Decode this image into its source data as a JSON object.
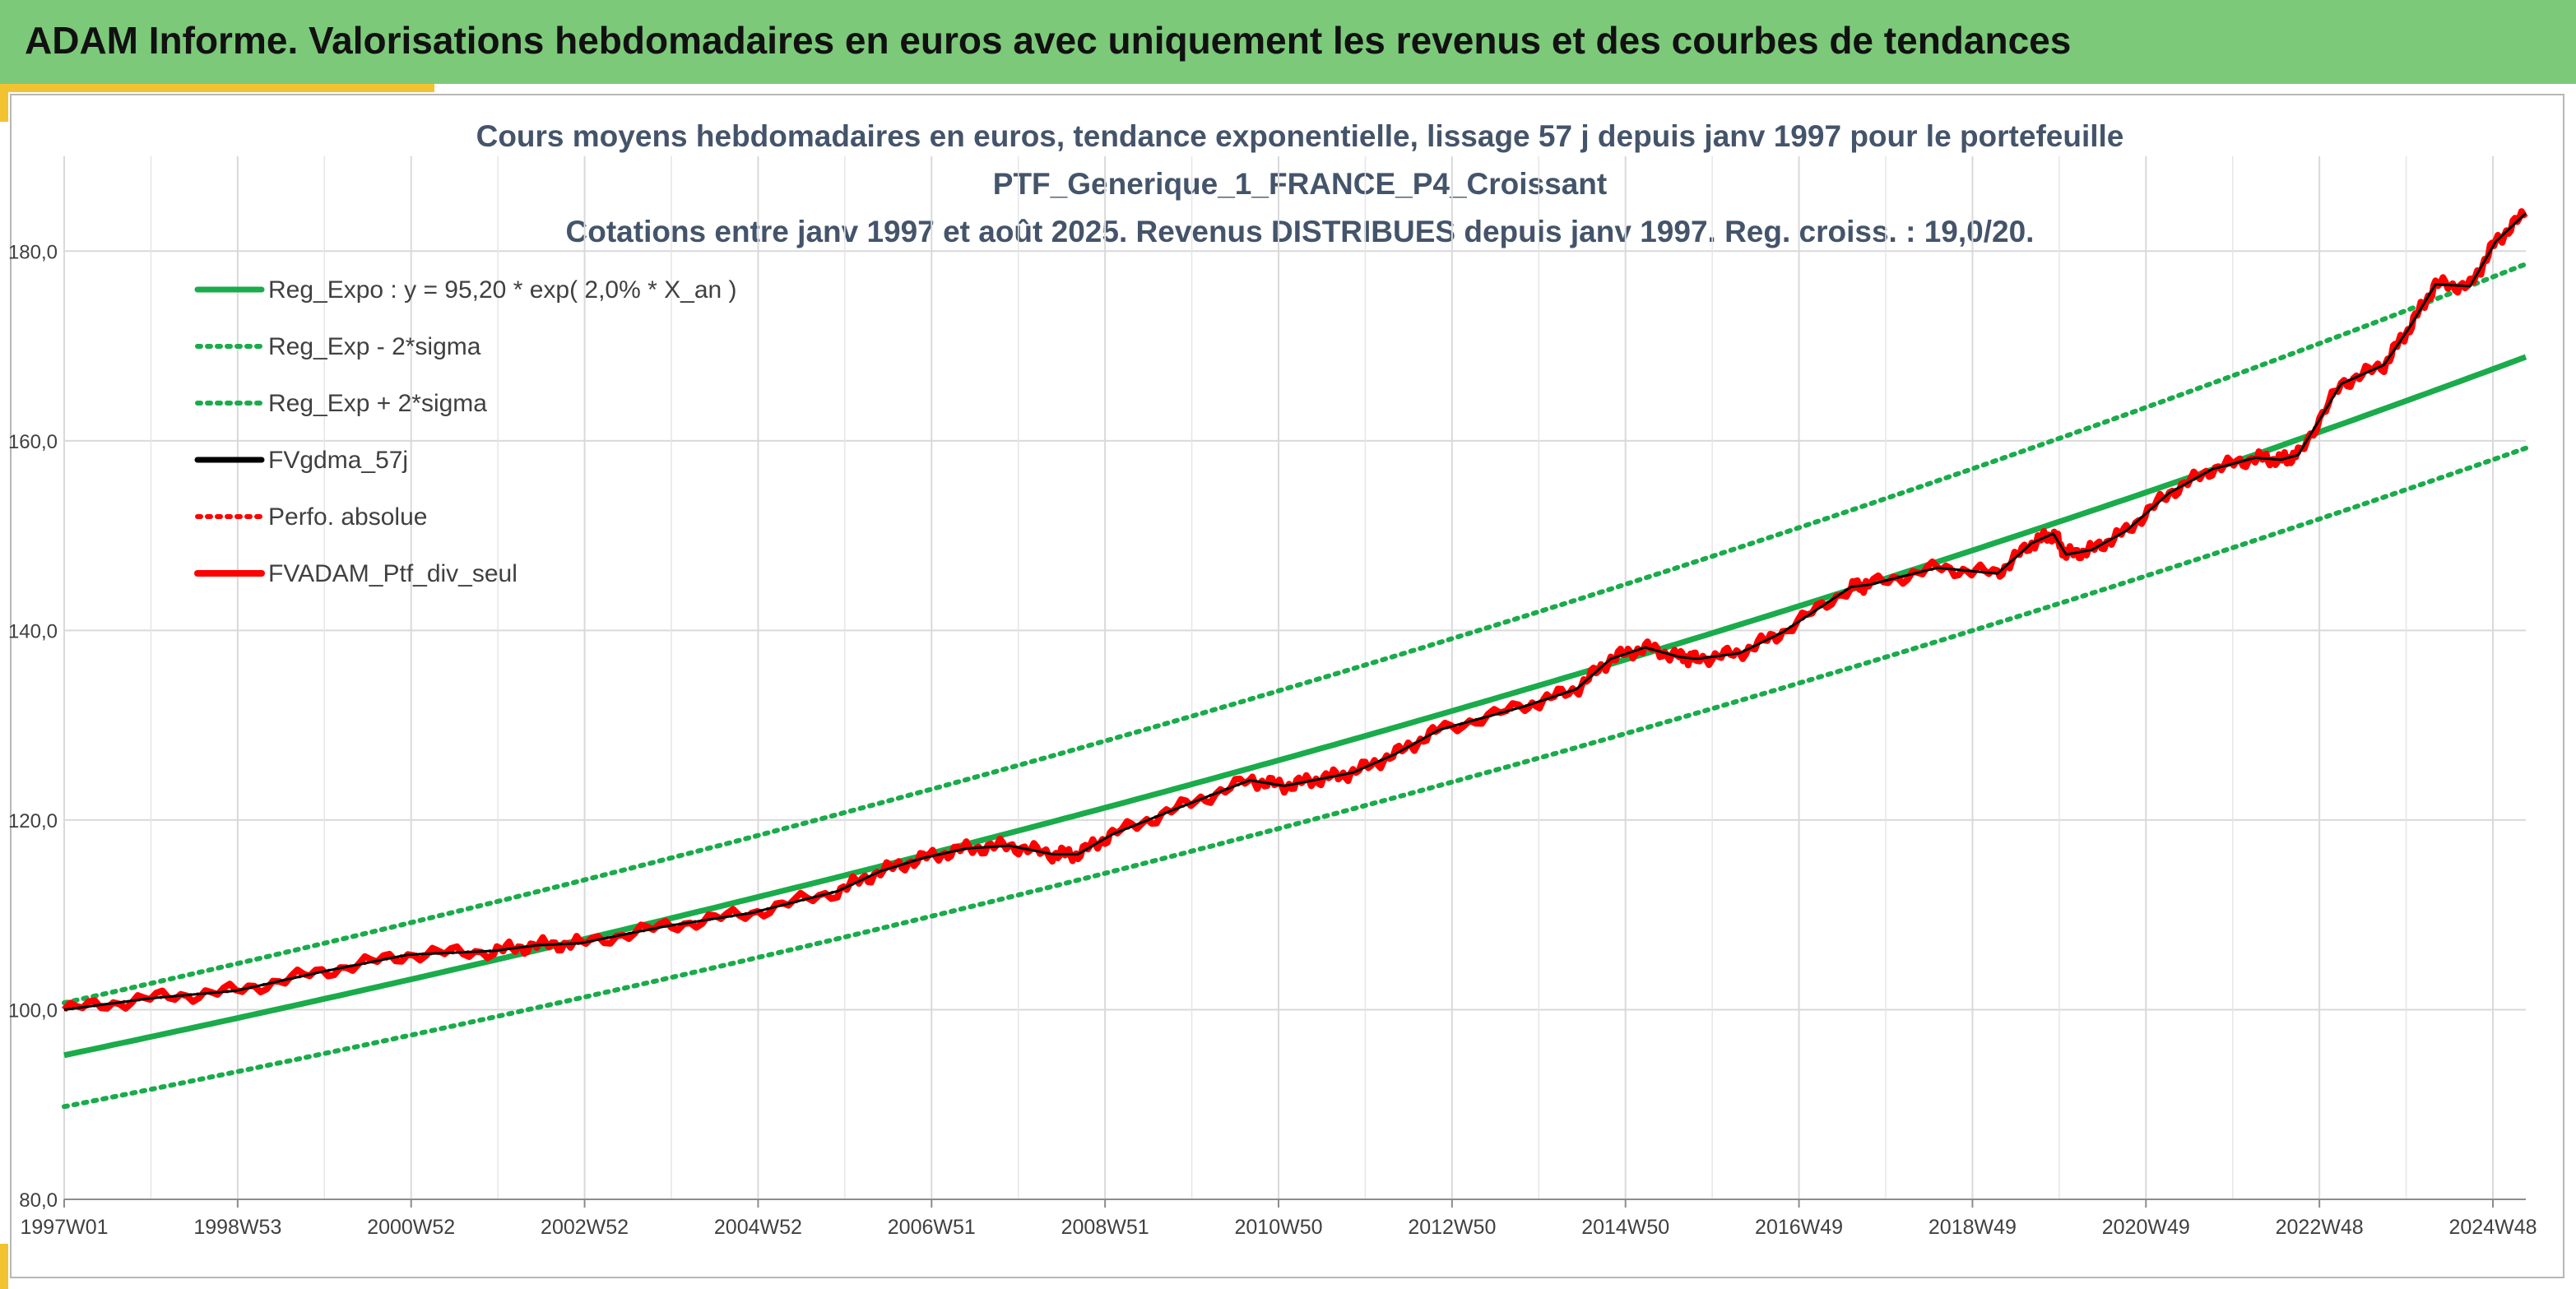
{
  "header": {
    "title": "ADAM Informe. Valorisations hebdomadaires en euros avec uniquement les revenus et des courbes de tendances"
  },
  "chart_data": {
    "type": "line",
    "title_lines": [
      "Cours moyens hebdomadaires en euros, tendance exponentielle, lissage 57 j depuis janv 1997 pour le portefeuille",
      "PTF_Generique_1_FRANCE_P4_Croissant",
      "Cotations entre janv 1997 et août 2025. Revenus DISTRIBUES depuis janv 1997. Reg. croiss. : 19,0/20."
    ],
    "xlabel": "",
    "ylabel": "",
    "x_tick_labels": [
      "1997W01",
      "1998W53",
      "2000W52",
      "2002W52",
      "2004W52",
      "2006W51",
      "2008W51",
      "2010W50",
      "2012W50",
      "2014W50",
      "2016W49",
      "2018W49",
      "2020W49",
      "2022W48",
      "2024W48"
    ],
    "y_tick_labels": [
      "80,0",
      "100,0",
      "120,0",
      "140,0",
      "160,0",
      "180,0"
    ],
    "ylim": [
      80,
      190
    ],
    "xlim_years": [
      1997.0,
      2025.65
    ],
    "grid": true,
    "legend_position": "top-left",
    "colors": {
      "green": "#1aab4b",
      "black": "#000000",
      "red": "#ff0000"
    },
    "regression": {
      "a": 95.2,
      "rate": 0.02,
      "upper_factor": 1.058,
      "lower_factor": 0.943
    },
    "series": [
      {
        "name": "Reg_Expo : y = 95,20 * exp( 2,0% *  X_an )",
        "style": "solid",
        "color": "#1aab4b",
        "x": [
          1997.0,
          2025.65
        ],
        "values": [
          95.2,
          169.3
        ]
      },
      {
        "name": "Reg_Exp - 2*sigma",
        "style": "dotted",
        "color": "#1aab4b",
        "x": [
          1997.0,
          2025.65
        ],
        "values": [
          89.8,
          159.9
        ]
      },
      {
        "name": "Reg_Exp + 2*sigma",
        "style": "dotted",
        "color": "#1aab4b",
        "x": [
          1997.0,
          2025.65
        ],
        "values": [
          100.7,
          179.2
        ]
      },
      {
        "name": "FVgdma_57j",
        "style": "solid",
        "color": "#000000",
        "x": [
          1997.0,
          1998.0,
          1999.0,
          2000.0,
          2001.0,
          2002.0,
          2002.5,
          2003.0,
          2004.0,
          2005.0,
          2006.0,
          2006.5,
          2007.0,
          2007.5,
          2008.0,
          2008.5,
          2008.8,
          2009.2,
          2010.0,
          2010.8,
          2011.2,
          2011.6,
          2012.0,
          2012.5,
          2013.0,
          2014.0,
          2014.6,
          2015.0,
          2015.4,
          2015.8,
          2016.0,
          2016.5,
          2017.0,
          2017.8,
          2018.0,
          2018.8,
          2019.5,
          2019.9,
          2020.15,
          2020.3,
          2020.6,
          2021.0,
          2021.5,
          2022.0,
          2022.5,
          2022.8,
          2023.0,
          2023.5,
          2024.0,
          2024.3,
          2024.6,
          2025.0,
          2025.3,
          2025.65
        ],
        "values": [
          100.0,
          101.2,
          102.0,
          104.0,
          105.8,
          106.2,
          106.8,
          107.0,
          108.8,
          110.2,
          112.5,
          114.6,
          116.0,
          117.0,
          117.3,
          116.4,
          116.4,
          118.5,
          121.4,
          124.2,
          123.6,
          124.3,
          125.0,
          127.0,
          129.5,
          132.0,
          133.8,
          137.0,
          138.2,
          137.2,
          137.0,
          137.6,
          139.8,
          144.6,
          144.8,
          146.6,
          146.0,
          149.2,
          150.2,
          148.0,
          148.5,
          150.5,
          154.5,
          157.0,
          158.2,
          158.0,
          158.5,
          166.0,
          168.0,
          172.0,
          176.5,
          176.3,
          181.0,
          184.0
        ]
      },
      {
        "name": "Perfo. absolue",
        "style": "dotted",
        "color": "#ff0000",
        "x": [
          1997.0,
          1998.0,
          1999.0,
          2000.0,
          2001.0,
          2002.0,
          2002.5,
          2003.0,
          2004.0,
          2005.0,
          2006.0,
          2006.5,
          2007.0,
          2007.5,
          2008.0,
          2008.5,
          2008.8,
          2009.2,
          2010.0,
          2010.8,
          2011.2,
          2011.6,
          2012.0,
          2012.5,
          2013.0,
          2014.0,
          2014.6,
          2015.0,
          2015.4,
          2015.8,
          2016.0,
          2016.5,
          2017.0,
          2017.8,
          2018.0,
          2018.8,
          2019.5,
          2019.9,
          2020.15,
          2020.3,
          2020.6,
          2021.0,
          2021.5,
          2022.0,
          2022.5,
          2022.8,
          2023.0,
          2023.5,
          2024.0,
          2024.3,
          2024.6,
          2025.0,
          2025.3,
          2025.65
        ],
        "values": [
          100.0,
          101.2,
          102.0,
          104.0,
          105.8,
          106.2,
          106.8,
          107.0,
          108.8,
          110.2,
          112.5,
          114.6,
          116.0,
          117.0,
          117.3,
          116.4,
          116.4,
          118.5,
          121.4,
          124.2,
          123.6,
          124.3,
          125.0,
          127.0,
          129.5,
          132.0,
          133.8,
          137.0,
          138.2,
          137.2,
          137.0,
          137.6,
          139.8,
          144.6,
          144.8,
          146.6,
          146.0,
          149.2,
          150.2,
          148.0,
          148.5,
          150.5,
          154.5,
          157.0,
          158.2,
          158.0,
          158.5,
          166.0,
          168.0,
          172.0,
          176.5,
          176.3,
          181.0,
          184.0
        ]
      },
      {
        "name": "FVADAM_Ptf_div_seul",
        "style": "solid",
        "color": "#ff0000",
        "x": [
          1997.0,
          1998.0,
          1999.0,
          2000.0,
          2001.0,
          2002.0,
          2002.5,
          2003.0,
          2004.0,
          2005.0,
          2006.0,
          2006.5,
          2007.0,
          2007.5,
          2008.0,
          2008.5,
          2008.8,
          2009.2,
          2010.0,
          2010.8,
          2011.2,
          2011.6,
          2012.0,
          2012.5,
          2013.0,
          2014.0,
          2014.6,
          2015.0,
          2015.4,
          2015.8,
          2016.0,
          2016.5,
          2017.0,
          2017.8,
          2018.0,
          2018.8,
          2019.5,
          2019.9,
          2020.15,
          2020.3,
          2020.6,
          2021.0,
          2021.5,
          2022.0,
          2022.5,
          2022.8,
          2023.0,
          2023.5,
          2024.0,
          2024.3,
          2024.6,
          2025.0,
          2025.3,
          2025.65
        ],
        "values": [
          100.0,
          101.2,
          102.0,
          104.0,
          105.8,
          106.2,
          106.8,
          107.0,
          108.8,
          110.2,
          112.5,
          114.6,
          116.0,
          117.0,
          117.3,
          116.4,
          116.4,
          118.5,
          121.4,
          124.2,
          123.6,
          124.3,
          125.0,
          127.0,
          129.5,
          132.0,
          133.8,
          137.0,
          138.2,
          137.2,
          137.0,
          137.6,
          139.8,
          144.6,
          144.8,
          146.6,
          146.0,
          149.2,
          150.2,
          148.0,
          148.5,
          150.5,
          154.5,
          157.0,
          158.2,
          158.0,
          158.5,
          166.0,
          168.0,
          172.0,
          176.5,
          176.3,
          181.0,
          184.0
        ]
      }
    ]
  }
}
